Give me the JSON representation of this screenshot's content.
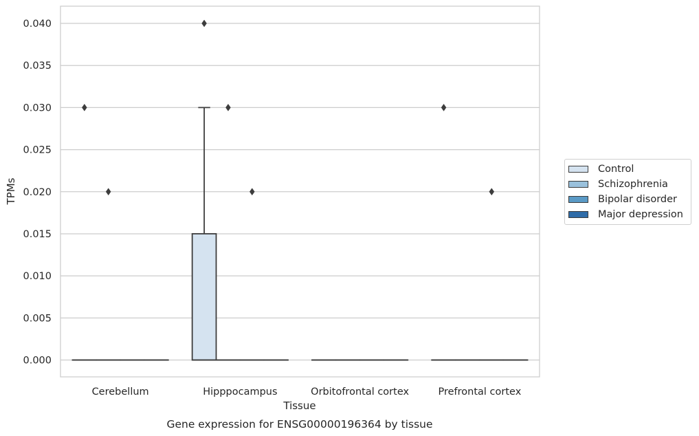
{
  "chart_data": {
    "type": "box",
    "title": "Gene expression for ENSG00000196364 by tissue",
    "xlabel": "Tissue",
    "ylabel": "TPMs",
    "categories": [
      "Cerebellum",
      "Hipppocampus",
      "Orbitofrontal cortex",
      "Prefrontal cortex"
    ],
    "ylim": [
      -0.002,
      0.042
    ],
    "yticks": [
      "0.000",
      "0.005",
      "0.010",
      "0.015",
      "0.020",
      "0.025",
      "0.030",
      "0.035",
      "0.040"
    ],
    "grid": true,
    "legend_position": "right",
    "series": [
      {
        "name": "Control",
        "color": "#d5e3f0",
        "boxes": [
          {
            "q1": 0,
            "median": 0,
            "q3": 0,
            "whislo": 0,
            "whishi": 0,
            "fliers": [
              0.03
            ]
          },
          {
            "q1": 0,
            "median": 0,
            "q3": 0.015,
            "whislo": 0,
            "whishi": 0.03,
            "fliers": [
              0.04
            ]
          },
          {
            "q1": 0,
            "median": 0,
            "q3": 0,
            "whislo": 0,
            "whishi": 0,
            "fliers": []
          },
          {
            "q1": 0,
            "median": 0,
            "q3": 0,
            "whislo": 0,
            "whishi": 0,
            "fliers": [
              0.03
            ]
          }
        ]
      },
      {
        "name": "Schizophrenia",
        "color": "#9ac1dc",
        "boxes": [
          {
            "q1": 0,
            "median": 0,
            "q3": 0,
            "whislo": 0,
            "whishi": 0,
            "fliers": [
              0.02
            ]
          },
          {
            "q1": 0,
            "median": 0,
            "q3": 0,
            "whislo": 0,
            "whishi": 0,
            "fliers": [
              0.03
            ]
          },
          {
            "q1": 0,
            "median": 0,
            "q3": 0,
            "whislo": 0,
            "whishi": 0,
            "fliers": []
          },
          {
            "q1": 0,
            "median": 0,
            "q3": 0,
            "whislo": 0,
            "whishi": 0,
            "fliers": []
          }
        ]
      },
      {
        "name": "Bipolar disorder",
        "color": "#5a9ac6",
        "boxes": [
          {
            "q1": 0,
            "median": 0,
            "q3": 0,
            "whislo": 0,
            "whishi": 0,
            "fliers": []
          },
          {
            "q1": 0,
            "median": 0,
            "q3": 0,
            "whislo": 0,
            "whishi": 0,
            "fliers": [
              0.02
            ]
          },
          {
            "q1": 0,
            "median": 0,
            "q3": 0,
            "whislo": 0,
            "whishi": 0,
            "fliers": []
          },
          {
            "q1": 0,
            "median": 0,
            "q3": 0,
            "whislo": 0,
            "whishi": 0,
            "fliers": [
              0.02
            ]
          }
        ]
      },
      {
        "name": "Major depression",
        "color": "#2f6ca8",
        "boxes": [
          {
            "q1": 0,
            "median": 0,
            "q3": 0,
            "whislo": 0,
            "whishi": 0,
            "fliers": []
          },
          {
            "q1": 0,
            "median": 0,
            "q3": 0,
            "whislo": 0,
            "whishi": 0,
            "fliers": []
          },
          {
            "q1": 0,
            "median": 0,
            "q3": 0,
            "whislo": 0,
            "whishi": 0,
            "fliers": []
          },
          {
            "q1": 0,
            "median": 0,
            "q3": 0,
            "whislo": 0,
            "whishi": 0,
            "fliers": []
          }
        ]
      }
    ]
  }
}
